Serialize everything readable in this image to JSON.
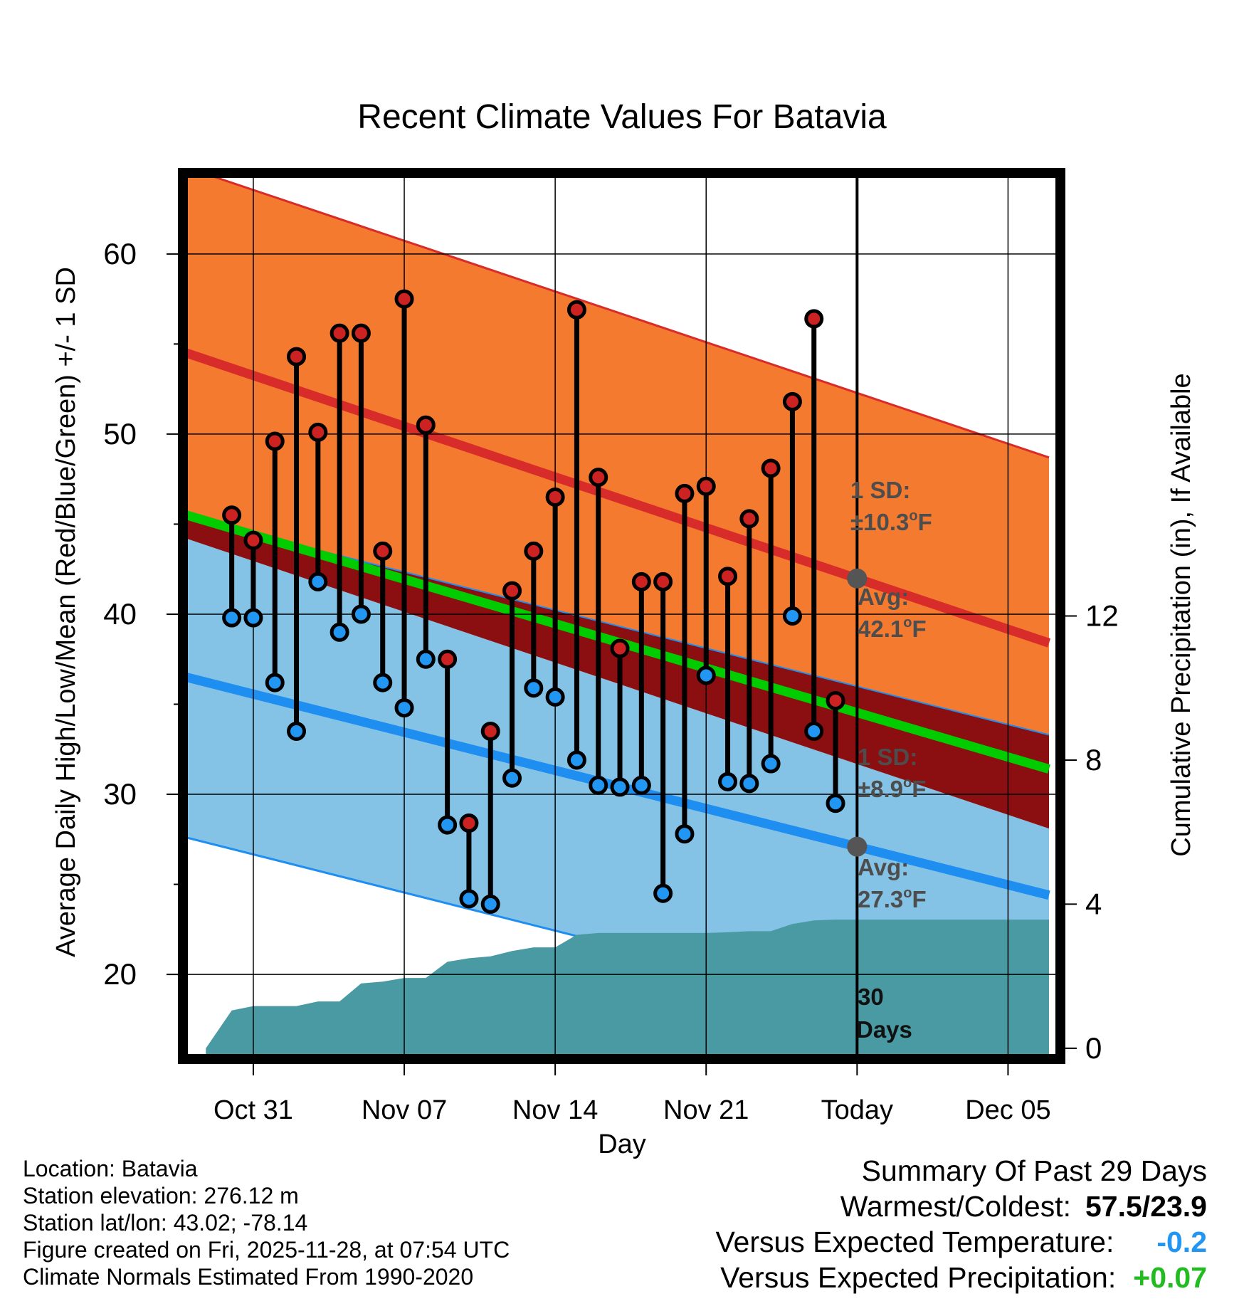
{
  "chart_data": {
    "type": "line",
    "title": "Recent Climate Values For Batavia",
    "xlabel": "Day",
    "ylabel": "Average Daily High/Low/Mean (Red/Blue/Green) +/- 1 SD",
    "y2label": "Cumulative Precipitation (in), If Available",
    "xlim": [
      -3.1,
      36.9
    ],
    "ylim": [
      15.5,
      64.3
    ],
    "y2lim": [
      -0.2,
      24.2
    ],
    "x_ticks": [
      {
        "x": 0,
        "label": "Oct 31"
      },
      {
        "x": 7,
        "label": "Nov 07"
      },
      {
        "x": 14,
        "label": "Nov 14"
      },
      {
        "x": 21,
        "label": "Nov 21"
      },
      {
        "x": 28,
        "label": "Today"
      },
      {
        "x": 35,
        "label": "Dec 05"
      }
    ],
    "y_ticks": [
      20,
      30,
      40,
      50,
      60
    ],
    "y2_ticks": [
      0,
      4,
      8,
      12
    ],
    "today_x": 28,
    "normal_high": {
      "start": 54.5,
      "end": 38.4,
      "sd": 10.3
    },
    "normal_low": {
      "start": 36.5,
      "end": 24.4,
      "sd": 8.9
    },
    "normal_mean": {
      "start": 45.5,
      "end": 31.4
    },
    "observations": {
      "days": [
        -1,
        0,
        1,
        2,
        3,
        4,
        5,
        6,
        7,
        8,
        9,
        10,
        11,
        12,
        13,
        14,
        15,
        16,
        17,
        18,
        19,
        20,
        21,
        22,
        23,
        24,
        25,
        26,
        27
      ],
      "highs": [
        45.5,
        44.1,
        49.6,
        54.3,
        50.1,
        55.6,
        55.6,
        43.5,
        57.5,
        50.5,
        37.5,
        28.4,
        33.5,
        41.3,
        43.5,
        46.5,
        56.9,
        47.6,
        38.1,
        41.8,
        41.8,
        46.7,
        47.1,
        42.1,
        45.3,
        48.1,
        51.8,
        56.4,
        35.2
      ],
      "lows": [
        39.8,
        39.8,
        36.2,
        33.5,
        41.8,
        39.0,
        40.0,
        36.2,
        34.8,
        37.5,
        28.3,
        24.2,
        23.9,
        30.9,
        35.9,
        35.4,
        31.9,
        30.5,
        30.4,
        30.5,
        24.5,
        27.8,
        36.6,
        30.7,
        30.6,
        31.7,
        39.9,
        33.5,
        29.5
      ]
    },
    "precip_cumulative": {
      "days": [
        -2.2,
        -1,
        0,
        1,
        2,
        3,
        4,
        5,
        6,
        7,
        8,
        9,
        10,
        11,
        12,
        13,
        14,
        15,
        16,
        17,
        18,
        19,
        20,
        21,
        22,
        23,
        24,
        25,
        26,
        27,
        28,
        36.9
      ],
      "values": [
        0.0,
        1.05,
        1.17,
        1.17,
        1.17,
        1.3,
        1.3,
        1.8,
        1.85,
        1.95,
        1.95,
        2.4,
        2.5,
        2.55,
        2.7,
        2.8,
        2.8,
        3.15,
        3.2,
        3.2,
        3.2,
        3.2,
        3.2,
        3.2,
        3.22,
        3.25,
        3.25,
        3.45,
        3.55,
        3.57,
        3.57,
        3.57
      ]
    },
    "annotations": {
      "high_sd": "1 SD:",
      "high_sd_value": "±10.3",
      "high_avg": "Avg:",
      "high_avg_value": "42.1",
      "low_sd": "1 SD:",
      "low_sd_value": "±8.9",
      "low_avg": "Avg:",
      "low_avg_value": "27.3",
      "degree_unit": "o",
      "fahrenheit": "F",
      "days_count": "30",
      "days_label": "Days"
    },
    "colors": {
      "high_band": "#f47a2f",
      "high_line": "#d82c2a",
      "low_band": "#84c2e6",
      "low_line": "#1e8ef0",
      "mean_band": "#8b0e10",
      "mean_line": "#00cc00",
      "precip": "#4a9aa3",
      "high_marker": "#cc2222",
      "low_marker": "#2196f3",
      "annotation": "#4d4d4d"
    }
  },
  "footer": {
    "location": "Location: Batavia",
    "elevation": "Station elevation: 276.12 m",
    "latlon": "Station lat/lon: 43.02; -78.14",
    "created": "Figure created on Fri, 2025-11-28, at 07:54 UTC",
    "normals": "Climate Normals Estimated From 1990-2020"
  },
  "summary": {
    "title": "Summary Of Past 29 Days",
    "warm_cold_label": "Warmest/Coldest:",
    "warm_cold_value": "57.5/23.9",
    "temp_label": "Versus Expected Temperature:",
    "temp_value": "-0.2",
    "temp_color": "#2196f3",
    "precip_label": "Versus Expected Precipitation:",
    "precip_value": "+0.07",
    "precip_color": "#22bb22"
  }
}
